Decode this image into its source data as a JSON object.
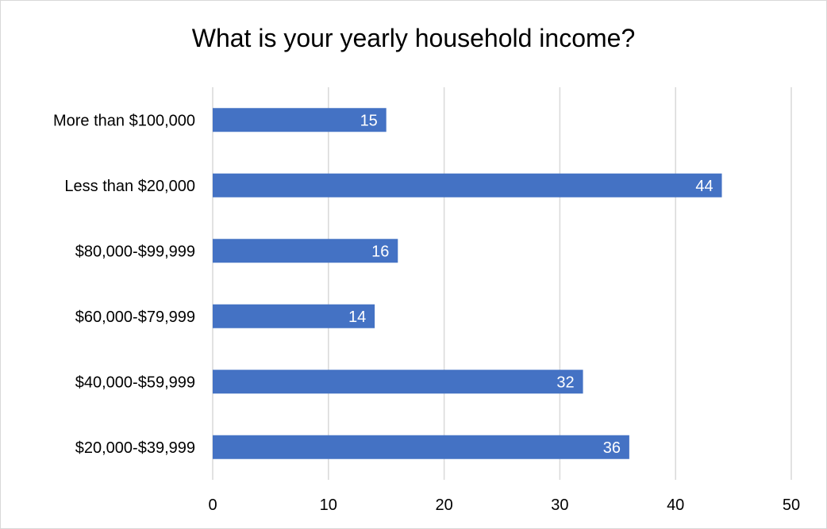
{
  "chart_data": {
    "type": "bar",
    "orientation": "horizontal",
    "title": "What is your yearly household income?",
    "categories": [
      "More than $100,000",
      "Less than $20,000",
      "$80,000-$99,999",
      "$60,000-$79,999",
      "$40,000-$59,999",
      "$20,000-$39,999"
    ],
    "values": [
      15,
      44,
      16,
      14,
      32,
      36
    ],
    "xlabel": "",
    "ylabel": "",
    "xlim": [
      0,
      50
    ],
    "xticks": [
      "0",
      "10",
      "20",
      "30",
      "40",
      "50"
    ],
    "grid": "vertical",
    "data_labels": true,
    "colors": {
      "bar": "#4472c4",
      "grid": "#d9d9d9",
      "label": "#ffffff"
    }
  }
}
